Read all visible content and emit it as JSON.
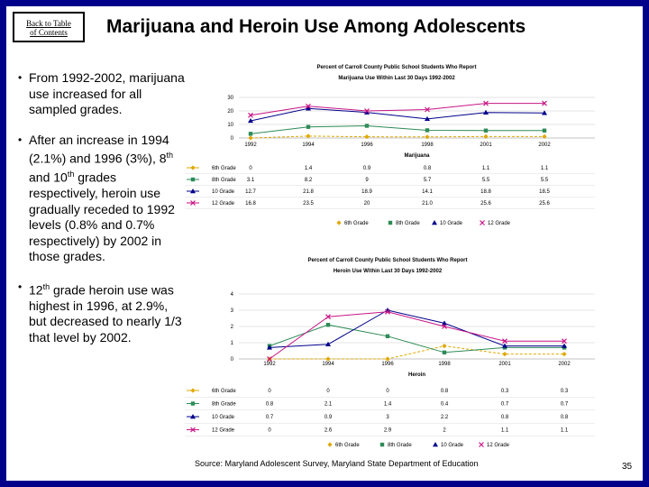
{
  "toc_button": {
    "line1": "Back to Table",
    "line2": "of Contents"
  },
  "title": "Marijuana and Heroin Use Among Adolescents",
  "bullets": [
    {
      "text": "From 1992-2002, marijuana use increased for all sampled grades."
    },
    {
      "pre": "After an increase in 1994 (2.1%) and 1996 (3%), 8",
      "sup1": "th",
      "mid": " and 10",
      "sup2": "th",
      "post": " grades respectively, heroin use gradually receded to 1992 levels (0.8% and 0.7% respectively) by 2002 in those grades."
    },
    {
      "pre": "12",
      "sup1": "th",
      "post": " grade heroin use was highest in 1996, at 2.9%, but decreased to nearly 1/3 that level by 2002."
    }
  ],
  "source": "Source: Maryland Adolescent Survey, Maryland State Department of Education",
  "page_number": "35",
  "colors": {
    "border": "#00008b",
    "g6": "#e0a800",
    "g8": "#2e8b57",
    "g10": "#00008b",
    "g12": "#c71585"
  },
  "chart_data": [
    {
      "type": "line",
      "title": "Percent of Carroll County Public School Students Who Report",
      "subtitle": "Marijuana Use Within Last 30 Days 1992-2002",
      "xlabel": "Marijuana",
      "x": [
        "1992",
        "1994",
        "1996",
        "1998",
        "2001",
        "2002"
      ],
      "yticks": [
        "0",
        "10",
        "20",
        "30"
      ],
      "ylim": [
        0,
        30
      ],
      "series": [
        {
          "name": "6th Grade",
          "values": [
            0,
            1.4,
            0.9,
            0.8,
            1.1,
            1.1
          ],
          "labels": [
            "0",
            "1.4",
            "0.9",
            "0.8",
            "1.1",
            "1.1"
          ]
        },
        {
          "name": "8th Grade",
          "values": [
            3.1,
            8.2,
            9,
            5.7,
            5.5,
            5.5
          ],
          "labels": [
            "3.1",
            "8.2",
            "9",
            "5.7",
            "5.5",
            "5.5"
          ]
        },
        {
          "name": "10 Grade",
          "values": [
            12.7,
            21.8,
            18.9,
            14.1,
            18.8,
            18.5
          ],
          "labels": [
            "12.7",
            "21.8",
            "18.9",
            "14.1",
            "18.8",
            "18.5"
          ]
        },
        {
          "name": "12 Grade",
          "values": [
            16.8,
            23.5,
            20,
            21.0,
            25.6,
            25.6
          ],
          "labels": [
            "16.8",
            "23.5",
            "20",
            "21.0",
            "25.6",
            "25.6"
          ]
        }
      ],
      "legend": [
        "6th Grade",
        "8th Grade",
        "10 Grade",
        "12 Grade"
      ]
    },
    {
      "type": "line",
      "title": "Percent of Carroll County Public School Students Who Report",
      "subtitle": "Heroin Use Within Last 30 Days 1992-2002",
      "xlabel": "Heroin",
      "x": [
        "1992",
        "1994",
        "1996",
        "1998",
        "2001",
        "2002"
      ],
      "yticks": [
        "0",
        "1",
        "2",
        "3",
        "4"
      ],
      "ylim": [
        0,
        4
      ],
      "series": [
        {
          "name": "6th Grade",
          "values": [
            0,
            0,
            0,
            0.8,
            0.3,
            0.3
          ],
          "labels": [
            "0",
            "0",
            "0",
            "0.8",
            "0.3",
            "0.3"
          ]
        },
        {
          "name": "8th Grade",
          "values": [
            0.8,
            2.1,
            1.4,
            0.4,
            0.7,
            0.7
          ],
          "labels": [
            "0.8",
            "2.1",
            "1.4",
            "0.4",
            "0.7",
            "0.7"
          ]
        },
        {
          "name": "10 Grade",
          "values": [
            0.7,
            0.9,
            3,
            2.2,
            0.8,
            0.8
          ],
          "labels": [
            "0.7",
            "0.9",
            "3",
            "2.2",
            "0.8",
            "0.8"
          ]
        },
        {
          "name": "12 Grade",
          "values": [
            0,
            2.6,
            2.9,
            2,
            1.1,
            1.1
          ],
          "labels": [
            "0",
            "2.6",
            "2.9",
            "2",
            "1.1",
            "1.1"
          ]
        }
      ],
      "legend": [
        "6th Grade",
        "8th Grade",
        "10 Grade",
        "12 Grade"
      ]
    }
  ]
}
